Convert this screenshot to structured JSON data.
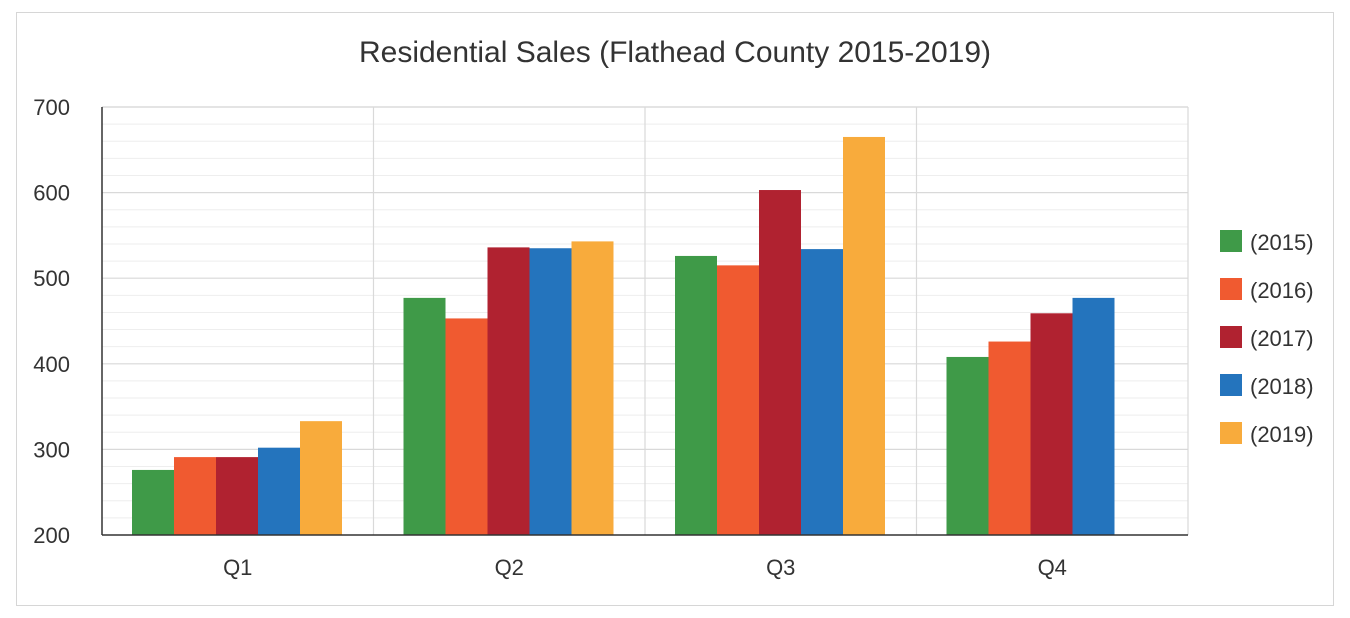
{
  "chart_data": {
    "type": "bar",
    "title": "Residential Sales (Flathead County 2015-2019)",
    "xlabel": "",
    "ylabel": "",
    "categories": [
      "Q1",
      "Q2",
      "Q3",
      "Q4"
    ],
    "ylim": [
      200,
      700
    ],
    "yticks": [
      200,
      300,
      400,
      500,
      600,
      700
    ],
    "grid": true,
    "legend_position": "right",
    "series": [
      {
        "name": "(2015)",
        "color": "#3f9a48",
        "values": [
          276,
          477,
          526,
          408
        ]
      },
      {
        "name": "(2016)",
        "color": "#f05a30",
        "values": [
          291,
          453,
          515,
          426
        ]
      },
      {
        "name": "(2017)",
        "color": "#b02230",
        "values": [
          291,
          536,
          603,
          459
        ]
      },
      {
        "name": "(2018)",
        "color": "#2474bd",
        "values": [
          302,
          535,
          534,
          477
        ]
      },
      {
        "name": "(2019)",
        "color": "#f8ab3c",
        "values": [
          333,
          543,
          665,
          null
        ]
      }
    ]
  }
}
